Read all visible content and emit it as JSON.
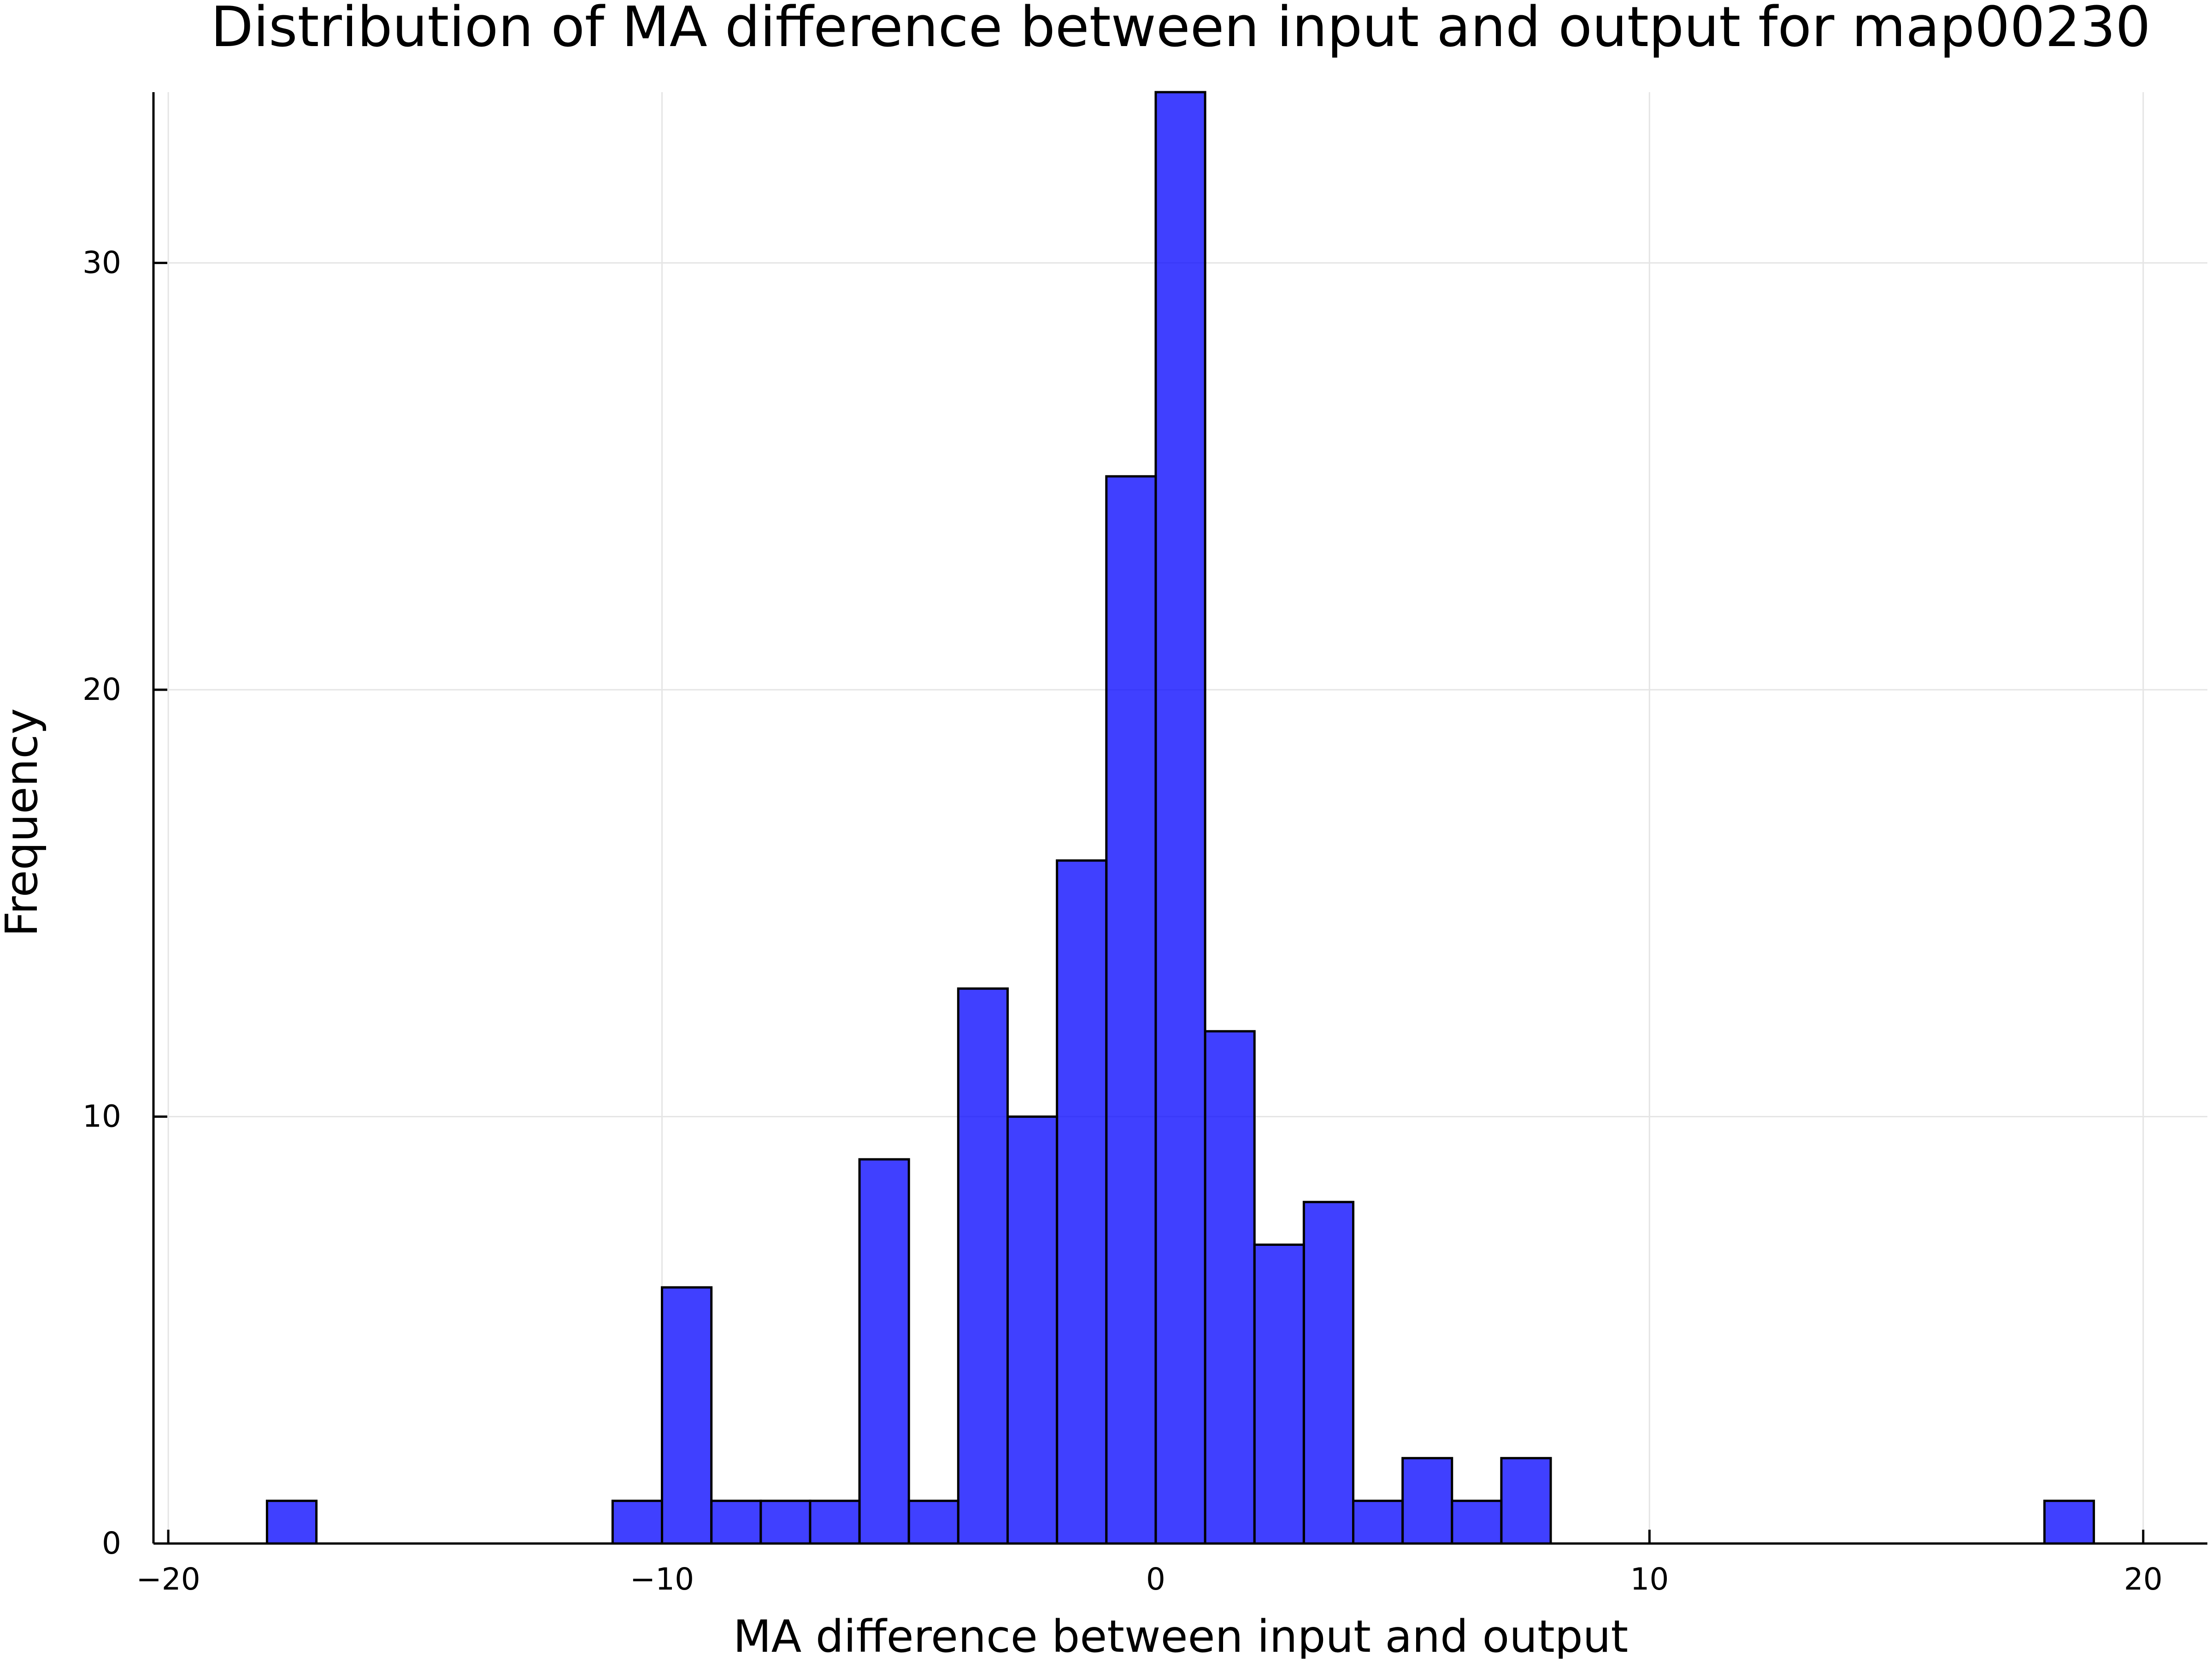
{
  "colors": {
    "bar_fill": "#0000ff",
    "bar_stroke": "#000000",
    "grid": "#e5e5e5",
    "axis": "#000000",
    "background": "#ffffff"
  },
  "chart_data": {
    "type": "bar",
    "title": "Distribution of MA difference between input and output for map00230",
    "xlabel": "MA difference between input and output",
    "ylabel": "Frequency",
    "xlim": [
      -20.3,
      21.3
    ],
    "ylim": [
      0,
      34
    ],
    "bin_width": 1,
    "bins": [
      {
        "left": -18,
        "count": 1
      },
      {
        "left": -11,
        "count": 1
      },
      {
        "left": -10,
        "count": 6
      },
      {
        "left": -9,
        "count": 1
      },
      {
        "left": -8,
        "count": 1
      },
      {
        "left": -7,
        "count": 1
      },
      {
        "left": -6,
        "count": 9
      },
      {
        "left": -5,
        "count": 1
      },
      {
        "left": -4,
        "count": 13
      },
      {
        "left": -3,
        "count": 10
      },
      {
        "left": -2,
        "count": 16
      },
      {
        "left": -1,
        "count": 25
      },
      {
        "left": 0,
        "count": 34
      },
      {
        "left": 1,
        "count": 12
      },
      {
        "left": 2,
        "count": 7
      },
      {
        "left": 3,
        "count": 8
      },
      {
        "left": 4,
        "count": 1
      },
      {
        "left": 5,
        "count": 2
      },
      {
        "left": 6,
        "count": 1
      },
      {
        "left": 7,
        "count": 2
      },
      {
        "left": 18,
        "count": 1
      }
    ],
    "x_ticks": [
      {
        "value": -20,
        "label": "−20"
      },
      {
        "value": -10,
        "label": "−10"
      },
      {
        "value": 0,
        "label": "0"
      },
      {
        "value": 10,
        "label": "10"
      },
      {
        "value": 20,
        "label": "20"
      }
    ],
    "y_ticks": [
      {
        "value": 0,
        "label": "0"
      },
      {
        "value": 10,
        "label": "10"
      },
      {
        "value": 20,
        "label": "20"
      },
      {
        "value": 30,
        "label": "30"
      }
    ],
    "grid": true,
    "legend": "none"
  }
}
